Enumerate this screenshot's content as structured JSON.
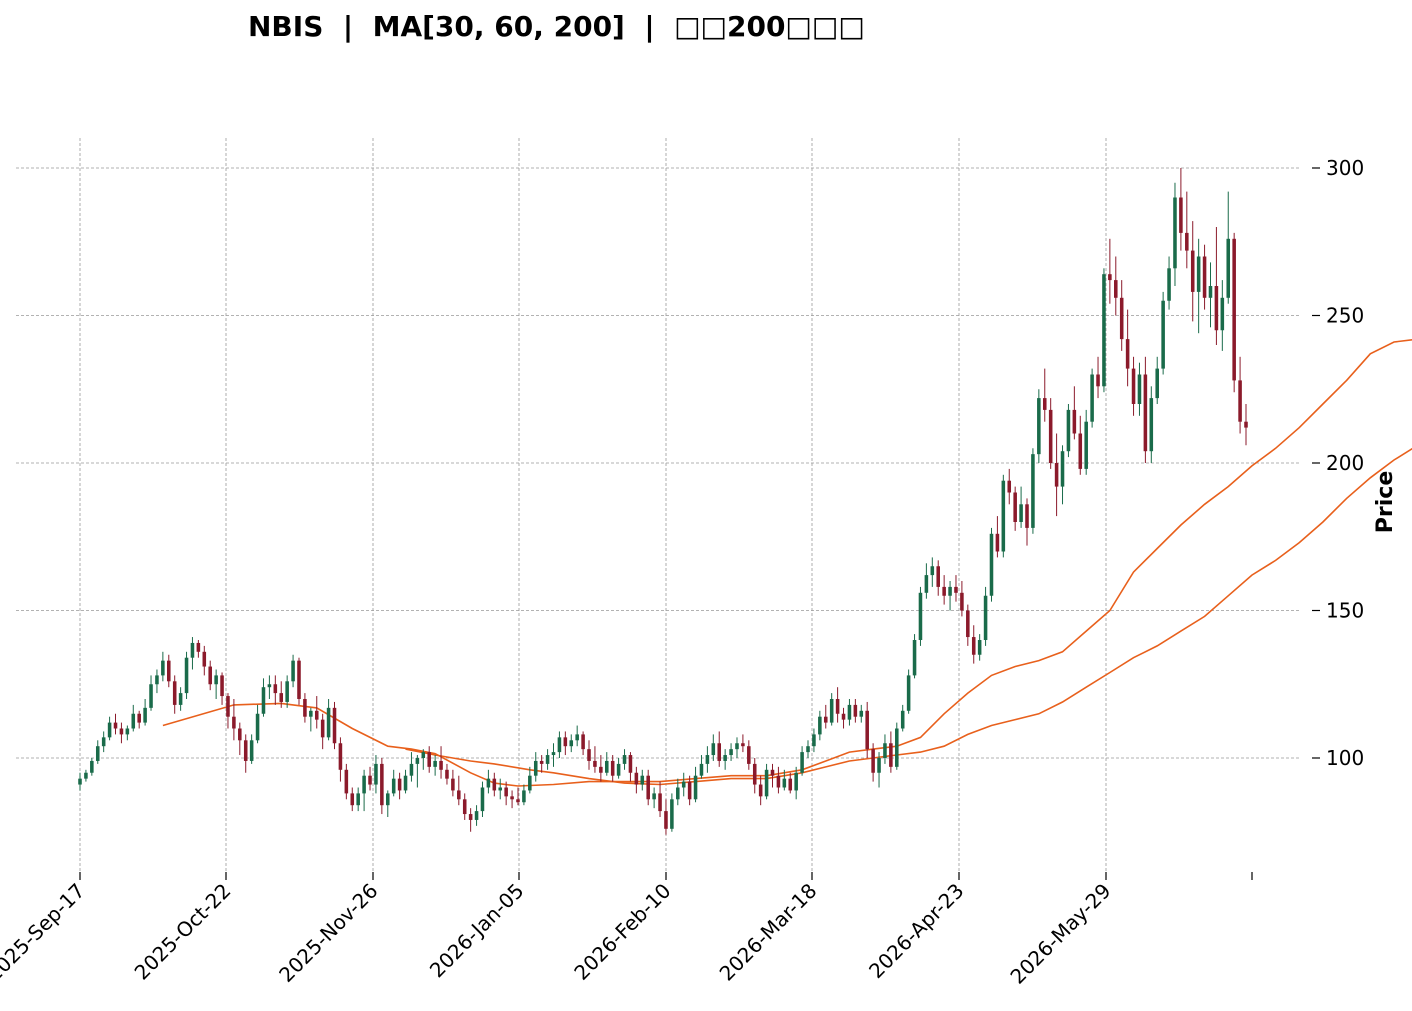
{
  "chart_data": {
    "type": "candlestick",
    "title": "NBIS  |  MA[30, 60, 200]  |  □□200□□□",
    "ylabel": "Price",
    "ylim": [
      62,
      300
    ],
    "y_ticks": [
      100,
      150,
      200,
      250,
      300
    ],
    "x_tick_labels": [
      "2025-Sep-17",
      "2025-Oct-22",
      "2025-Nov-26",
      "2026-Jan-05",
      "2026-Feb-10",
      "2026-Mar-18",
      "2026-Apr-23",
      "2026-May-29"
    ],
    "grid": true,
    "colors": {
      "up": "#1a6b4a",
      "down": "#8b1a2b",
      "ma": "#e8601c",
      "grid": "#999999"
    },
    "candles": [
      [
        91,
        95,
        89,
        93
      ],
      [
        93,
        96,
        92,
        95
      ],
      [
        95,
        100,
        94,
        99
      ],
      [
        99,
        106,
        98,
        104
      ],
      [
        104,
        109,
        102,
        107
      ],
      [
        107,
        114,
        106,
        112
      ],
      [
        112,
        115,
        108,
        110
      ],
      [
        110,
        112,
        105,
        108
      ],
      [
        108,
        111,
        106,
        110
      ],
      [
        110,
        118,
        109,
        115
      ],
      [
        115,
        116,
        110,
        112
      ],
      [
        112,
        120,
        111,
        117
      ],
      [
        117,
        128,
        116,
        125
      ],
      [
        125,
        130,
        122,
        128
      ],
      [
        128,
        136,
        126,
        133
      ],
      [
        133,
        135,
        124,
        126
      ],
      [
        126,
        128,
        115,
        118
      ],
      [
        118,
        124,
        116,
        122
      ],
      [
        122,
        136,
        120,
        134
      ],
      [
        134,
        141,
        130,
        139
      ],
      [
        139,
        140,
        134,
        136
      ],
      [
        136,
        138,
        128,
        131
      ],
      [
        131,
        133,
        123,
        125
      ],
      [
        125,
        130,
        120,
        128
      ],
      [
        128,
        129,
        118,
        121
      ],
      [
        121,
        122,
        110,
        114
      ],
      [
        114,
        120,
        106,
        110
      ],
      [
        110,
        112,
        101,
        106
      ],
      [
        106,
        108,
        95,
        99
      ],
      [
        99,
        108,
        98,
        106
      ],
      [
        106,
        118,
        105,
        115
      ],
      [
        115,
        127,
        114,
        124
      ],
      [
        124,
        128,
        120,
        125
      ],
      [
        125,
        128,
        118,
        122
      ],
      [
        122,
        126,
        117,
        119
      ],
      [
        119,
        128,
        117,
        126
      ],
      [
        126,
        135,
        124,
        133
      ],
      [
        133,
        134,
        118,
        120
      ],
      [
        120,
        122,
        112,
        114
      ],
      [
        114,
        117,
        109,
        116
      ],
      [
        116,
        121,
        110,
        113
      ],
      [
        113,
        115,
        103,
        107
      ],
      [
        107,
        120,
        106,
        117
      ],
      [
        117,
        119,
        103,
        105
      ],
      [
        105,
        107,
        92,
        96
      ],
      [
        96,
        98,
        86,
        88
      ],
      [
        88,
        90,
        82,
        84
      ],
      [
        84,
        90,
        82,
        88
      ],
      [
        88,
        96,
        82,
        94
      ],
      [
        94,
        97,
        89,
        91
      ],
      [
        91,
        101,
        88,
        98
      ],
      [
        98,
        100,
        81,
        84
      ],
      [
        84,
        89,
        80,
        88
      ],
      [
        88,
        96,
        87,
        93
      ],
      [
        93,
        95,
        86,
        89
      ],
      [
        89,
        96,
        88,
        94
      ],
      [
        94,
        102,
        92,
        98
      ],
      [
        98,
        101,
        90,
        100
      ],
      [
        100,
        103,
        96,
        102
      ],
      [
        102,
        104,
        95,
        97
      ],
      [
        97,
        101,
        94,
        99
      ],
      [
        99,
        104,
        93,
        96
      ],
      [
        96,
        98,
        91,
        93
      ],
      [
        93,
        96,
        87,
        89
      ],
      [
        89,
        94,
        84,
        86
      ],
      [
        86,
        88,
        79,
        81
      ],
      [
        81,
        83,
        75,
        79
      ],
      [
        79,
        84,
        77,
        82
      ],
      [
        82,
        92,
        80,
        90
      ],
      [
        90,
        96,
        88,
        93
      ],
      [
        93,
        95,
        87,
        89
      ],
      [
        89,
        93,
        86,
        90
      ],
      [
        90,
        92,
        84,
        87
      ],
      [
        87,
        89,
        83,
        86
      ],
      [
        86,
        90,
        84,
        85
      ],
      [
        85,
        91,
        84,
        89
      ],
      [
        89,
        97,
        88,
        94
      ],
      [
        94,
        102,
        92,
        99
      ],
      [
        99,
        101,
        95,
        98
      ],
      [
        98,
        103,
        96,
        101
      ],
      [
        101,
        105,
        97,
        102
      ],
      [
        102,
        109,
        100,
        107
      ],
      [
        107,
        109,
        101,
        104
      ],
      [
        104,
        108,
        102,
        106
      ],
      [
        106,
        111,
        104,
        108
      ],
      [
        108,
        109,
        101,
        103
      ],
      [
        103,
        106,
        96,
        99
      ],
      [
        99,
        104,
        95,
        97
      ],
      [
        97,
        101,
        92,
        95
      ],
      [
        95,
        102,
        94,
        99
      ],
      [
        99,
        101,
        92,
        94
      ],
      [
        94,
        100,
        93,
        98
      ],
      [
        98,
        103,
        96,
        101
      ],
      [
        101,
        102,
        92,
        95
      ],
      [
        95,
        97,
        88,
        91
      ],
      [
        91,
        96,
        89,
        94
      ],
      [
        94,
        96,
        84,
        86
      ],
      [
        86,
        90,
        83,
        88
      ],
      [
        88,
        92,
        80,
        82
      ],
      [
        82,
        86,
        74,
        76
      ],
      [
        76,
        88,
        75,
        86
      ],
      [
        86,
        93,
        84,
        90
      ],
      [
        90,
        95,
        87,
        92
      ],
      [
        92,
        94,
        84,
        86
      ],
      [
        86,
        97,
        85,
        94
      ],
      [
        94,
        101,
        93,
        98
      ],
      [
        98,
        104,
        95,
        101
      ],
      [
        101,
        108,
        99,
        105
      ],
      [
        105,
        109,
        97,
        99
      ],
      [
        99,
        103,
        96,
        101
      ],
      [
        101,
        105,
        99,
        103
      ],
      [
        103,
        107,
        100,
        105
      ],
      [
        105,
        108,
        102,
        104
      ],
      [
        104,
        106,
        96,
        98
      ],
      [
        98,
        100,
        88,
        91
      ],
      [
        91,
        94,
        84,
        87
      ],
      [
        87,
        98,
        86,
        96
      ],
      [
        96,
        98,
        90,
        94
      ],
      [
        94,
        97,
        88,
        90
      ],
      [
        90,
        96,
        89,
        93
      ],
      [
        93,
        95,
        88,
        89
      ],
      [
        89,
        97,
        86,
        95
      ],
      [
        95,
        104,
        94,
        102
      ],
      [
        102,
        106,
        100,
        104
      ],
      [
        104,
        110,
        102,
        108
      ],
      [
        108,
        116,
        106,
        114
      ],
      [
        114,
        118,
        110,
        112
      ],
      [
        112,
        122,
        111,
        120
      ],
      [
        120,
        124,
        112,
        115
      ],
      [
        115,
        117,
        110,
        113
      ],
      [
        113,
        120,
        111,
        118
      ],
      [
        118,
        120,
        112,
        114
      ],
      [
        114,
        118,
        112,
        116
      ],
      [
        116,
        119,
        100,
        103
      ],
      [
        103,
        105,
        92,
        95
      ],
      [
        95,
        102,
        90,
        100
      ],
      [
        100,
        108,
        98,
        105
      ],
      [
        105,
        109,
        95,
        97
      ],
      [
        97,
        112,
        96,
        110
      ],
      [
        110,
        118,
        109,
        116
      ],
      [
        116,
        130,
        115,
        128
      ],
      [
        128,
        142,
        127,
        140
      ],
      [
        140,
        158,
        138,
        156
      ],
      [
        156,
        166,
        154,
        162
      ],
      [
        162,
        168,
        158,
        165
      ],
      [
        165,
        167,
        155,
        158
      ],
      [
        158,
        162,
        152,
        155
      ],
      [
        155,
        160,
        150,
        158
      ],
      [
        158,
        162,
        153,
        156
      ],
      [
        156,
        160,
        148,
        150
      ],
      [
        150,
        152,
        138,
        141
      ],
      [
        141,
        145,
        132,
        135
      ],
      [
        135,
        142,
        133,
        140
      ],
      [
        140,
        158,
        138,
        155
      ],
      [
        155,
        178,
        153,
        176
      ],
      [
        176,
        182,
        168,
        170
      ],
      [
        170,
        196,
        168,
        194
      ],
      [
        194,
        198,
        186,
        190
      ],
      [
        190,
        192,
        177,
        180
      ],
      [
        180,
        192,
        178,
        186
      ],
      [
        186,
        188,
        172,
        178
      ],
      [
        178,
        205,
        176,
        203
      ],
      [
        203,
        225,
        200,
        222
      ],
      [
        222,
        232,
        214,
        218
      ],
      [
        218,
        222,
        198,
        200
      ],
      [
        200,
        210,
        182,
        192
      ],
      [
        192,
        206,
        186,
        204
      ],
      [
        204,
        220,
        202,
        218
      ],
      [
        218,
        226,
        208,
        210
      ],
      [
        210,
        216,
        196,
        198
      ],
      [
        198,
        218,
        196,
        214
      ],
      [
        214,
        232,
        212,
        230
      ],
      [
        230,
        236,
        222,
        226
      ],
      [
        226,
        266,
        224,
        264
      ],
      [
        264,
        276,
        254,
        262
      ],
      [
        262,
        270,
        250,
        256
      ],
      [
        256,
        262,
        238,
        242
      ],
      [
        242,
        252,
        226,
        232
      ],
      [
        232,
        236,
        216,
        220
      ],
      [
        220,
        234,
        216,
        230
      ],
      [
        230,
        236,
        200,
        204
      ],
      [
        204,
        226,
        200,
        222
      ],
      [
        222,
        236,
        220,
        232
      ],
      [
        232,
        258,
        230,
        255
      ],
      [
        255,
        270,
        252,
        266
      ],
      [
        266,
        295,
        260,
        290
      ],
      [
        290,
        300,
        272,
        278
      ],
      [
        278,
        292,
        266,
        272
      ],
      [
        272,
        282,
        248,
        258
      ],
      [
        258,
        276,
        244,
        270
      ],
      [
        270,
        274,
        252,
        256
      ],
      [
        256,
        268,
        246,
        260
      ],
      [
        260,
        280,
        240,
        245
      ],
      [
        245,
        262,
        238,
        256
      ],
      [
        256,
        292,
        254,
        276
      ],
      [
        276,
        278,
        224,
        228
      ],
      [
        228,
        236,
        210,
        214
      ],
      [
        214,
        220,
        206,
        212
      ]
    ],
    "ma_lines": [
      {
        "name": "",
        "period": 30,
        "points": [
          [
            14,
            111
          ],
          [
            26,
            118
          ],
          [
            34,
            118.5
          ],
          [
            40,
            117
          ],
          [
            46,
            110
          ],
          [
            52,
            104
          ],
          [
            56,
            103
          ],
          [
            60,
            101.5
          ],
          [
            66,
            95
          ],
          [
            70,
            91.5
          ],
          [
            74,
            90.5
          ],
          [
            80,
            91
          ],
          [
            86,
            92
          ],
          [
            92,
            92
          ],
          [
            98,
            92
          ],
          [
            104,
            93
          ],
          [
            110,
            94
          ],
          [
            116,
            94
          ],
          [
            122,
            96
          ],
          [
            126,
            99
          ],
          [
            130,
            102
          ],
          [
            134,
            103
          ],
          [
            138,
            104
          ],
          [
            142,
            107
          ],
          [
            146,
            115
          ],
          [
            150,
            122
          ],
          [
            154,
            128
          ],
          [
            158,
            131
          ],
          [
            162,
            133
          ],
          [
            166,
            136
          ],
          [
            170,
            143
          ],
          [
            174,
            150
          ],
          [
            178,
            163
          ],
          [
            182,
            171
          ],
          [
            186,
            179
          ],
          [
            190,
            186
          ],
          [
            194,
            192
          ],
          [
            198,
            199
          ],
          [
            202,
            205
          ],
          [
            206,
            212
          ],
          [
            210,
            220
          ],
          [
            214,
            228
          ],
          [
            218,
            237
          ],
          [
            222,
            241
          ],
          [
            226,
            242
          ]
        ]
      },
      {
        "name": "",
        "period": 60,
        "points": [
          [
            55,
            103
          ],
          [
            60,
            101
          ],
          [
            66,
            99
          ],
          [
            70,
            98
          ],
          [
            76,
            96
          ],
          [
            80,
            95
          ],
          [
            86,
            93
          ],
          [
            92,
            91.5
          ],
          [
            98,
            91
          ],
          [
            104,
            92
          ],
          [
            110,
            93
          ],
          [
            116,
            93
          ],
          [
            122,
            95
          ],
          [
            126,
            97
          ],
          [
            130,
            99
          ],
          [
            134,
            100
          ],
          [
            138,
            101
          ],
          [
            142,
            102
          ],
          [
            146,
            104
          ],
          [
            150,
            108
          ],
          [
            154,
            111
          ],
          [
            158,
            113
          ],
          [
            162,
            115
          ],
          [
            166,
            119
          ],
          [
            170,
            124
          ],
          [
            174,
            129
          ],
          [
            178,
            134
          ],
          [
            182,
            138
          ],
          [
            186,
            143
          ],
          [
            190,
            148
          ],
          [
            194,
            155
          ],
          [
            198,
            162
          ],
          [
            202,
            167
          ],
          [
            206,
            173
          ],
          [
            210,
            180
          ],
          [
            214,
            188
          ],
          [
            218,
            195
          ],
          [
            222,
            201
          ],
          [
            226,
            206
          ]
        ]
      }
    ]
  }
}
